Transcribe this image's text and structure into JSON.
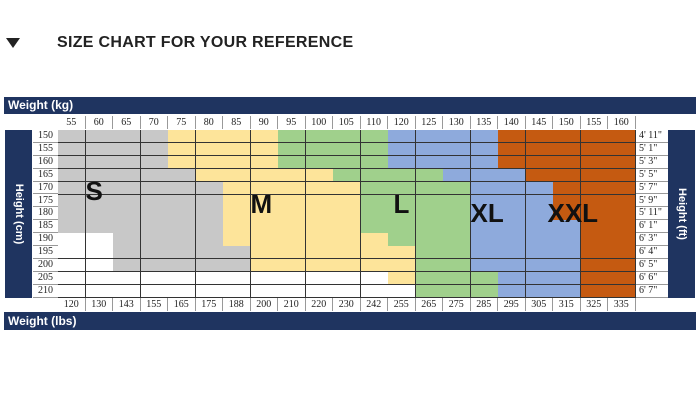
{
  "title": "SIZE CHART FOR YOUR REFERENCE",
  "top_bar_label": "Weight (kg)",
  "bottom_bar_label": "Weight (lbs)",
  "left_axis_label": "Height (cm)",
  "right_axis_label": "Height (ft)",
  "weights_kg": [
    "55",
    "60",
    "65",
    "70",
    "75",
    "80",
    "85",
    "90",
    "95",
    "100",
    "105",
    "110",
    "120",
    "125",
    "130",
    "135",
    "140",
    "145",
    "150",
    "155",
    "160"
  ],
  "weights_lbs": [
    "120",
    "130",
    "143",
    "155",
    "165",
    "175",
    "188",
    "200",
    "210",
    "220",
    "230",
    "242",
    "255",
    "265",
    "275",
    "285",
    "295",
    "305",
    "315",
    "325",
    "335"
  ],
  "heights_cm": [
    "150",
    "155",
    "160",
    "165",
    "170",
    "175",
    "180",
    "185",
    "190",
    "195",
    "200",
    "205",
    "210"
  ],
  "heights_ft": [
    "4' 11\"",
    "5' 1\"",
    "5' 3\"",
    "5' 5\"",
    "5' 7\"",
    "5' 9\"",
    "5' 11\"",
    "6' 1\"",
    "6' 3\"",
    "6' 4\"",
    "6' 5\"",
    "6' 6\"",
    "6' 7\""
  ],
  "sizes": {
    "S": "S",
    "M": "M",
    "L": "L",
    "X": "XL",
    "Z": "XXL"
  },
  "size_colors": {
    "S": "#c8c8c8",
    "M": "#fde49a",
    "L": "#a0d08c",
    "X": "#8eaadc",
    "Z": "#c55a11",
    "_": "#ffffff"
  },
  "grid": [
    "SSSSMMMMLLLLXXXXZZZZZ",
    "SSSSMMMMLLLLXXXXZZZZZ",
    "SSSSMMMMLLLLXXXXZZZZZ",
    "SSSSSMMMMMLLLLXXXZZZZ",
    "SSSSSSMMMMMLLLLXXXZZZ",
    "SSSSSSMMMMMLLLLXXXZZZ",
    "SSSSSSMMMMMLLLLXXXZZZ",
    "SSSSSSMMMMMLLLLXXXXZZ",
    "__SSSSMMMMMMLLLXXXXZZ",
    "__SSSSSMMMMMMLLXXXXZZ",
    "__SSSSSMMMMMMLLXXXXZZ",
    "____________MLLLXXXZZ",
    "_____________LLLXXXZZ"
  ]
}
